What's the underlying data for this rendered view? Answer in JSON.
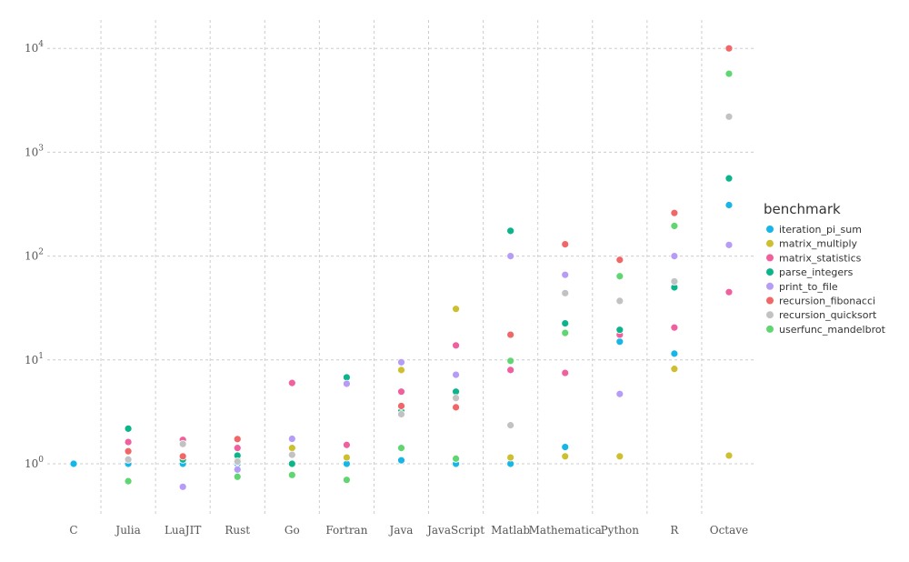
{
  "chart_data": {
    "type": "scatter",
    "categories": [
      "C",
      "Julia",
      "LuaJIT",
      "Rust",
      "Go",
      "Fortran",
      "Java",
      "JavaScript",
      "Matlab",
      "Mathematica",
      "Python",
      "R",
      "Octave"
    ],
    "y_scale": "log10",
    "ylim": [
      0.3,
      15000
    ],
    "y_ticks": [
      {
        "value": 1,
        "base": "10",
        "exp": "0"
      },
      {
        "value": 10,
        "base": "10",
        "exp": "1"
      },
      {
        "value": 100,
        "base": "10",
        "exp": "2"
      },
      {
        "value": 1000,
        "base": "10",
        "exp": "3"
      },
      {
        "value": 10000,
        "base": "10",
        "exp": "4"
      }
    ],
    "grid": true,
    "legend": {
      "title": "benchmark",
      "position": "right"
    },
    "series": [
      {
        "name": "iteration_pi_sum",
        "color": "#17b6e8",
        "values": [
          1.0,
          1.0,
          1.0,
          1.0,
          1.0,
          1.0,
          1.08,
          1.0,
          1.0,
          1.45,
          15,
          11.5,
          310
        ]
      },
      {
        "name": "matrix_multiply",
        "color": "#cdbf2f",
        "values": [
          null,
          1.1,
          1.1,
          1.1,
          1.42,
          1.15,
          8.0,
          31,
          1.15,
          1.18,
          1.18,
          8.2,
          1.2
        ]
      },
      {
        "name": "matrix_statistics",
        "color": "#f0609e",
        "values": [
          null,
          1.62,
          1.7,
          1.42,
          6.0,
          1.52,
          4.95,
          13.8,
          8.0,
          7.5,
          17.5,
          20.5,
          45
        ]
      },
      {
        "name": "parse_integers",
        "color": "#0cb48b",
        "values": [
          null,
          2.18,
          1.1,
          1.2,
          1.0,
          6.8,
          3.2,
          4.95,
          175,
          22.5,
          19.5,
          50,
          560
        ]
      },
      {
        "name": "print_to_file",
        "color": "#b69cf7",
        "values": [
          null,
          1.1,
          0.6,
          0.88,
          1.74,
          5.9,
          9.5,
          7.2,
          100,
          66,
          4.7,
          100,
          128
        ]
      },
      {
        "name": "recursion_fibonacci",
        "color": "#f16666",
        "values": [
          null,
          1.32,
          1.18,
          1.73,
          null,
          null,
          3.6,
          3.5,
          17.5,
          130,
          92,
          260,
          10000
        ]
      },
      {
        "name": "recursion_quicksort",
        "color": "#c2c2c2",
        "values": [
          null,
          1.1,
          1.55,
          1.05,
          1.22,
          null,
          3.0,
          4.3,
          2.35,
          44,
          37,
          57,
          2200
        ]
      },
      {
        "name": "userfunc_mandelbrot",
        "color": "#60d672",
        "values": [
          null,
          0.68,
          null,
          0.75,
          0.78,
          0.7,
          1.42,
          1.12,
          9.8,
          18.2,
          64,
          195,
          5700
        ]
      }
    ]
  }
}
